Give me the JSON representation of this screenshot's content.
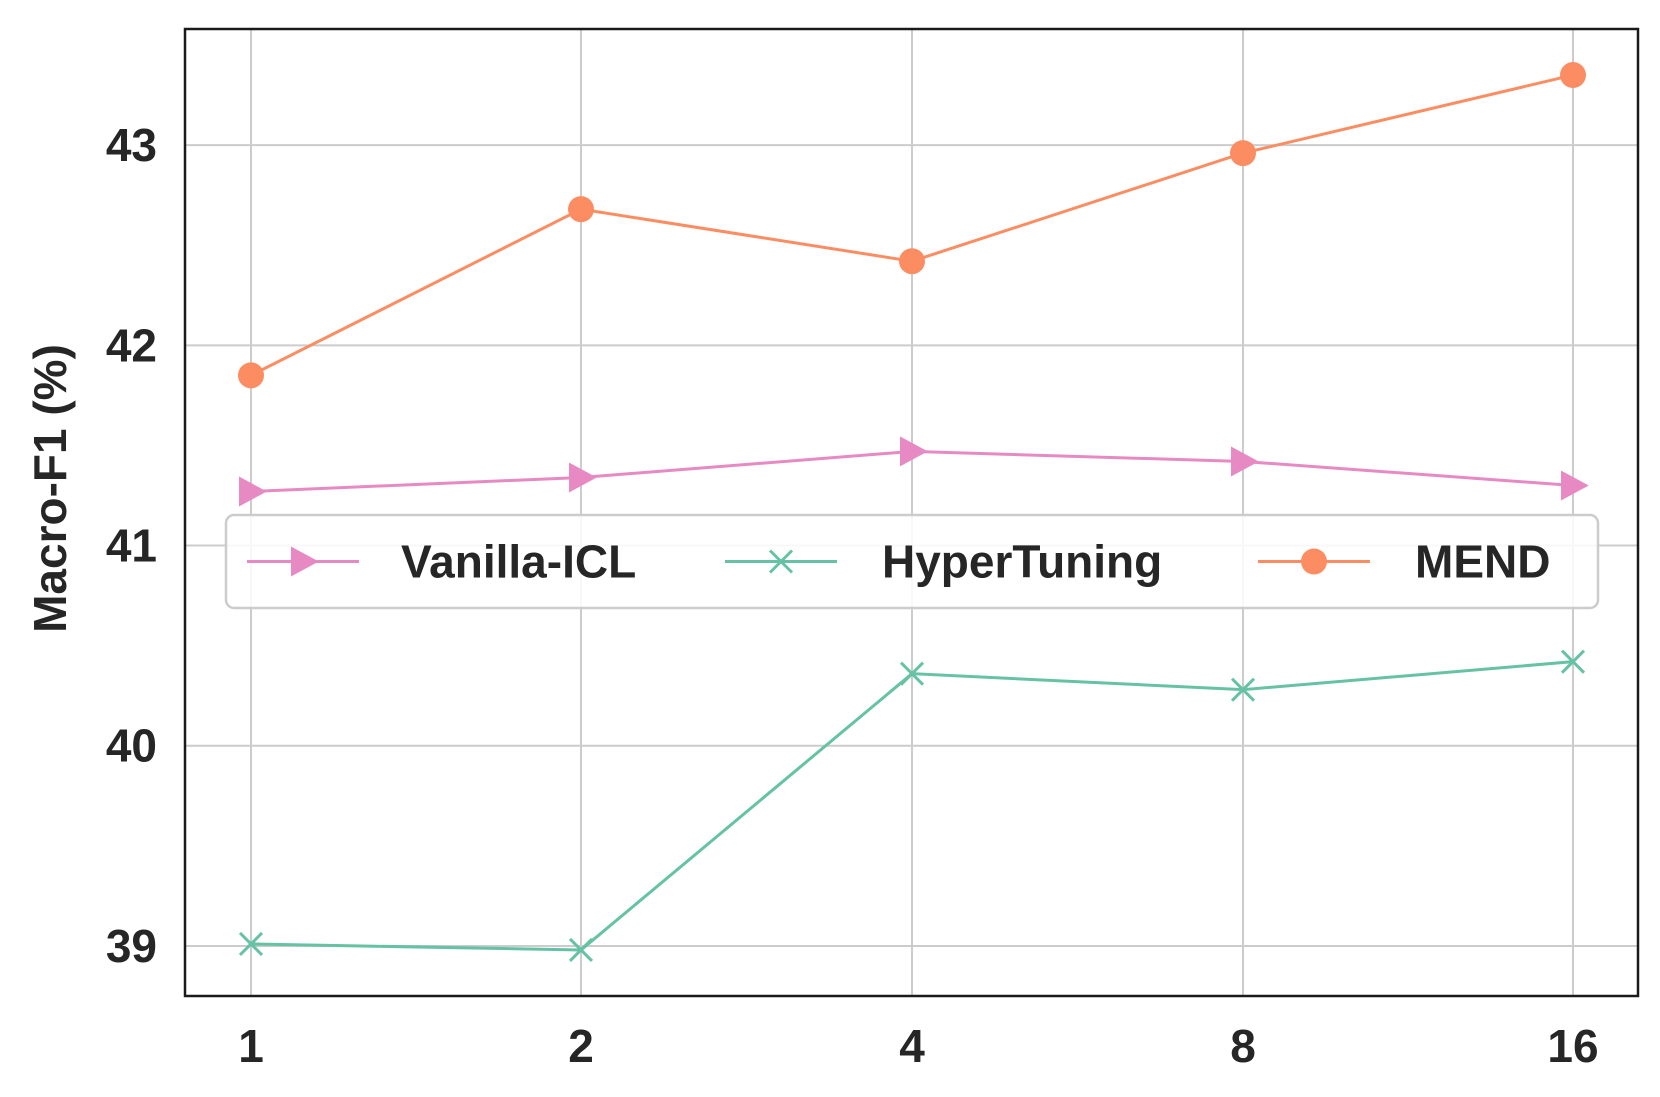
{
  "chart_data": {
    "type": "line",
    "x": [
      "1",
      "2",
      "4",
      "8",
      "16"
    ],
    "ylabel": "Macro-F1 (%)",
    "xlabel": "",
    "ylim": [
      38.75,
      43.58
    ],
    "yticks": [
      39,
      40,
      41,
      42,
      43
    ],
    "grid": true,
    "legend_position": "center",
    "series": [
      {
        "name": "Vanilla-ICL",
        "values": [
          41.27,
          41.34,
          41.47,
          41.42,
          41.3
        ],
        "color": "#e78ac3",
        "marker": "triangle-right"
      },
      {
        "name": "HyperTuning",
        "values": [
          39.01,
          38.98,
          40.36,
          40.28,
          40.42
        ],
        "color": "#66c2a5",
        "marker": "x"
      },
      {
        "name": "MEND",
        "values": [
          41.85,
          42.68,
          42.42,
          42.96,
          43.35
        ],
        "color": "#fc8d62",
        "marker": "circle"
      }
    ]
  }
}
